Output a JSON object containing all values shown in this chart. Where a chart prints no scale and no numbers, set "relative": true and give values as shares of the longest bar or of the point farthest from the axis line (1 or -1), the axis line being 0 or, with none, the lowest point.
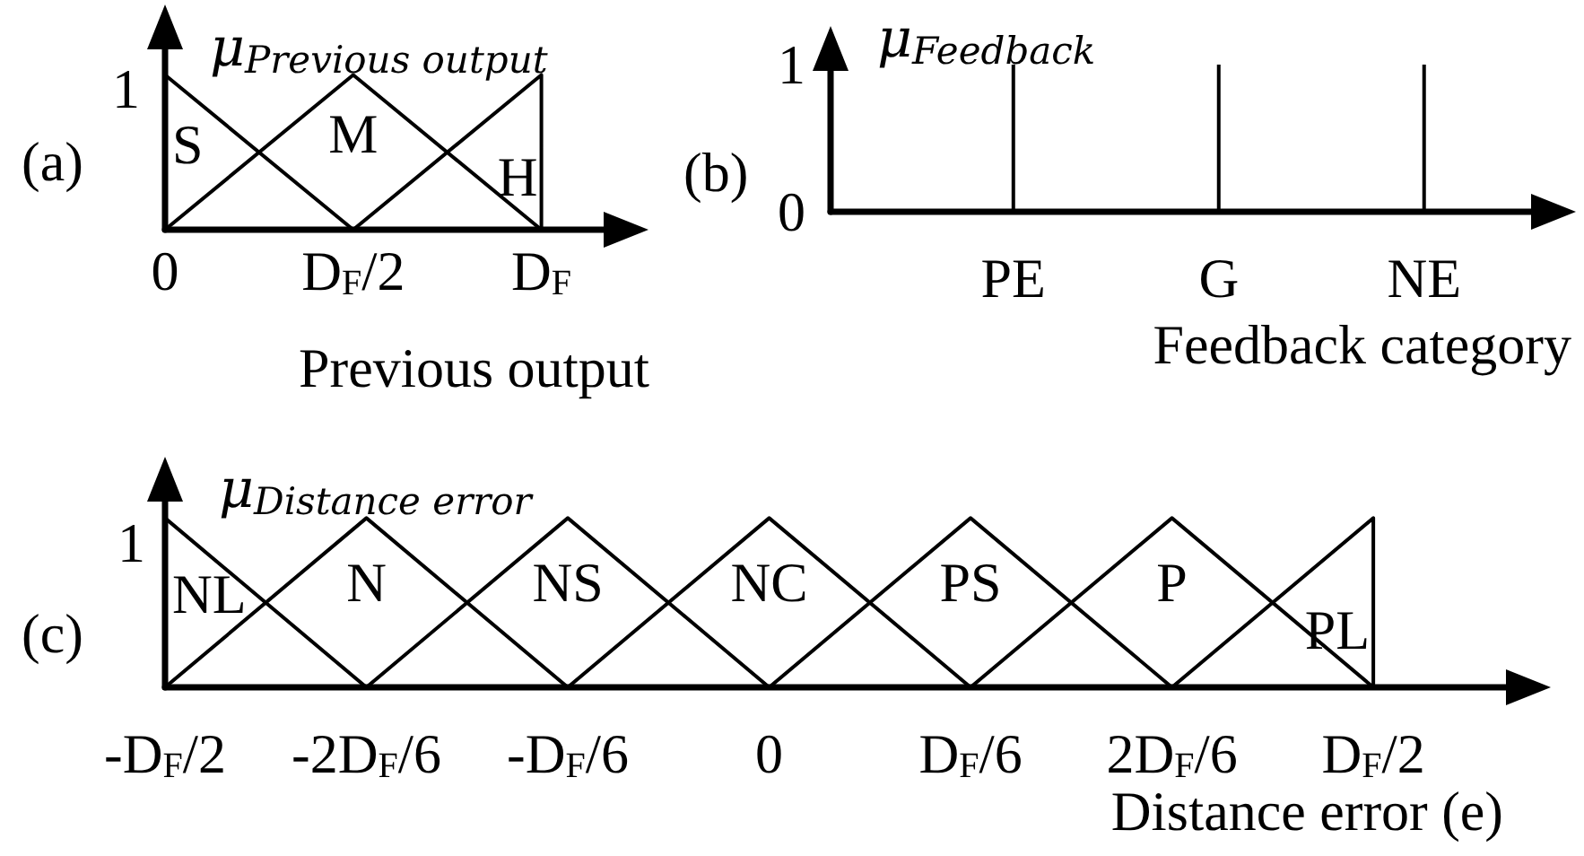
{
  "chart_data": [
    {
      "type": "line",
      "title": "(a)",
      "xlabel": "Previous output",
      "ylabel": "μ$_{Previous output}$",
      "relative": true,
      "annotations": [
        "1"
      ],
      "categories": [
        "0",
        "D$_{F}$/2",
        "D$_{F}$"
      ],
      "series": [
        {
          "name": "S",
          "color": "#000000",
          "values": [
            1,
            0,
            null
          ]
        },
        {
          "name": "M",
          "color": "#000000",
          "values": [
            0,
            1,
            0
          ]
        },
        {
          "name": "H",
          "color": "#000000",
          "x": [
            "D$_{F}$/2",
            "D$_{F}$",
            "D$_{F}$"
          ],
          "values": [
            0,
            1,
            0
          ]
        }
      ]
    },
    {
      "type": "bar",
      "title": "(b)",
      "xlabel": "Feedback category",
      "ylabel": "μ$_{Feedback}$",
      "categories": [
        "PE",
        "G",
        "NE"
      ],
      "values": [
        1,
        1,
        1
      ],
      "color": "#000000",
      "ylim": [
        0,
        1.11
      ],
      "yticks": [
        0,
        1
      ]
    },
    {
      "type": "line",
      "title": "(c)",
      "xlabel": "Distance error (e)",
      "ylabel": "μ$_{Distance error}$",
      "relative": true,
      "annotations": [
        "1"
      ],
      "categories": [
        "-D$_{F}$/2",
        "-2D$_{F}$/6",
        "-D$_{F}$/6",
        "0",
        "D$_{F}$/6",
        "2D$_{F}$/6",
        "D$_{F}$/2"
      ],
      "series": [
        {
          "name": "NL",
          "color": "#000000",
          "values": [
            1,
            0,
            null,
            null,
            null,
            null,
            null
          ]
        },
        {
          "name": "N",
          "color": "#000000",
          "values": [
            0,
            1,
            0,
            null,
            null,
            null,
            null
          ]
        },
        {
          "name": "NS",
          "color": "#000000",
          "values": [
            null,
            0,
            1,
            0,
            null,
            null,
            null
          ]
        },
        {
          "name": "NC",
          "color": "#000000",
          "values": [
            null,
            null,
            0,
            1,
            0,
            null,
            null
          ]
        },
        {
          "name": "PS",
          "color": "#000000",
          "values": [
            null,
            null,
            null,
            0,
            1,
            0,
            null
          ]
        },
        {
          "name": "P",
          "color": "#000000",
          "values": [
            null,
            null,
            null,
            null,
            0,
            1,
            0
          ]
        },
        {
          "name": "PL",
          "color": "#000000",
          "x": [
            "2D$_{F}$/6",
            "D$_{F}$/2",
            "D$_{F}$/2"
          ],
          "values": [
            0,
            1,
            0
          ]
        }
      ]
    }
  ]
}
